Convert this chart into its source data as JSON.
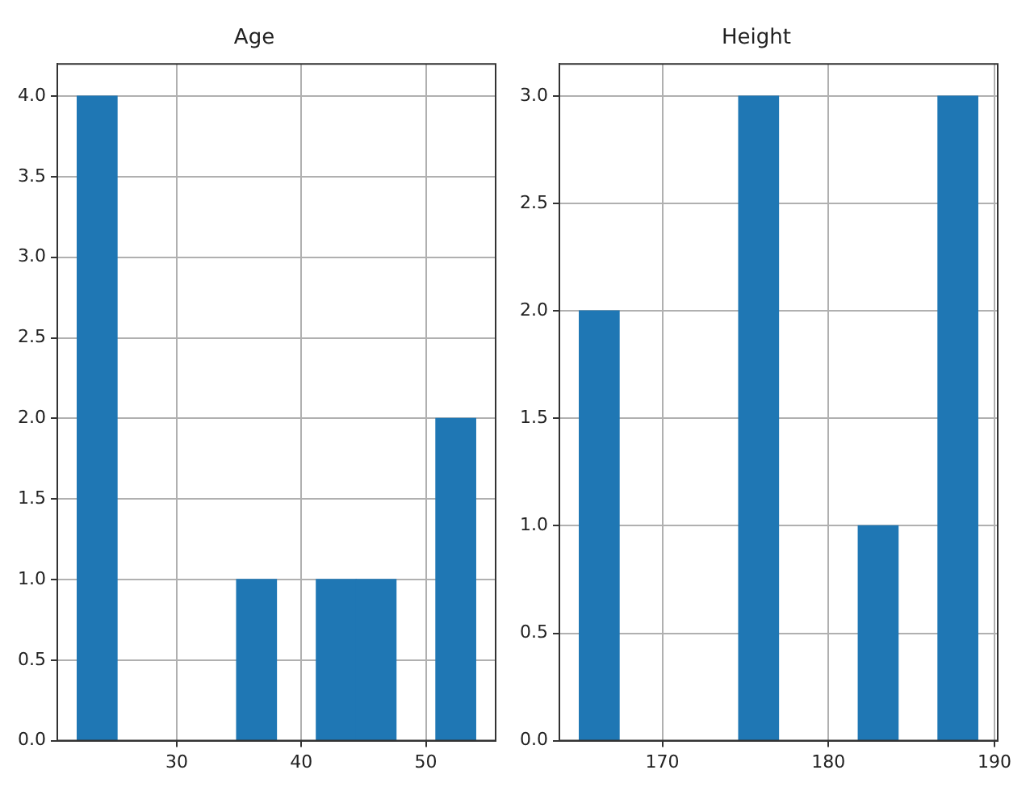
{
  "chart_data": [
    {
      "type": "histogram",
      "title": "Age",
      "bins": [
        22,
        25.2,
        28.4,
        31.6,
        34.8,
        38,
        41.2,
        44.4,
        47.6,
        50.8,
        54
      ],
      "values": [
        4,
        0,
        0,
        0,
        1,
        0,
        1,
        1,
        0,
        2
      ],
      "color": "#1f77b4",
      "xlim": [
        20.4,
        55.6
      ],
      "xticks": [
        30,
        40,
        50
      ],
      "ylim": [
        0,
        4.2
      ],
      "yticks": [
        {
          "value": 0,
          "label": "0.0"
        },
        {
          "value": 0.5,
          "label": "0.5"
        },
        {
          "value": 1,
          "label": "1.0"
        },
        {
          "value": 1.5,
          "label": "1.5"
        },
        {
          "value": 2,
          "label": "2.0"
        },
        {
          "value": 2.5,
          "label": "2.5"
        },
        {
          "value": 3,
          "label": "3.0"
        },
        {
          "value": 3.5,
          "label": "3.5"
        },
        {
          "value": 4,
          "label": "4.0"
        }
      ],
      "grid": true
    },
    {
      "type": "histogram",
      "title": "Height",
      "bins": [
        165,
        167.4,
        169.8,
        172.2,
        174.6,
        177,
        179.4,
        181.8,
        184.2,
        186.6,
        189
      ],
      "values": [
        2,
        0,
        0,
        0,
        3,
        0,
        0,
        1,
        0,
        3
      ],
      "color": "#1f77b4",
      "xlim": [
        163.8,
        190.2
      ],
      "xticks": [
        170,
        180,
        190
      ],
      "ylim": [
        0,
        3.15
      ],
      "yticks": [
        {
          "value": 0,
          "label": "0.0"
        },
        {
          "value": 0.5,
          "label": "0.5"
        },
        {
          "value": 1,
          "label": "1.0"
        },
        {
          "value": 1.5,
          "label": "1.5"
        },
        {
          "value": 2,
          "label": "2.0"
        },
        {
          "value": 2.5,
          "label": "2.5"
        },
        {
          "value": 3,
          "label": "3.0"
        }
      ],
      "grid": true
    }
  ]
}
